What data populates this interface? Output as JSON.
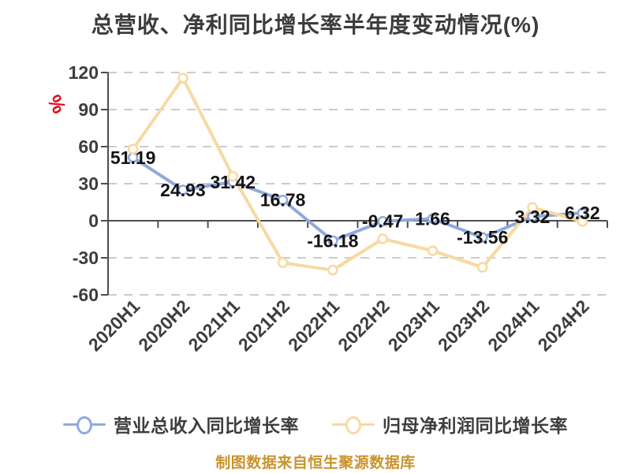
{
  "title": "总营收、净利同比增长率半年度变动情况(%)",
  "unit_label": "%",
  "footer": "制图数据来自恒生聚源数据库",
  "colors": {
    "revenue_series": "#8fandc-placeholder",
    "title_text": "#3c3c3c",
    "axis": "#4d4d4d",
    "gridline": "#cbcbcb",
    "data_label": "#141414",
    "unit_red": "#e60012",
    "footer_gold": "#c9932e"
  },
  "legend": [
    {
      "label": "营业总收入同比增长率",
      "color": "#8faadc"
    },
    {
      "label": "归母净利润同比增长率",
      "color": "#f8d9a0"
    }
  ],
  "chart_data": {
    "type": "line",
    "title": "总营收、净利同比增长率半年度变动情况(%)",
    "categories": [
      "2020H1",
      "2020H2",
      "2021H1",
      "2021H2",
      "2022H1",
      "2022H2",
      "2023H1",
      "2023H2",
      "2024H1",
      "2024H2"
    ],
    "series": [
      {
        "name": "营业总收入同比增长率",
        "color": "#8faadc",
        "values": [
          51.19,
          24.93,
          31.42,
          16.78,
          -16.18,
          -0.47,
          1.66,
          -13.56,
          3.32,
          6.32
        ],
        "labels": [
          "51.19",
          "24.93",
          "31.42",
          "16.78",
          "-16.18",
          "-0.47",
          "1.66",
          "-13.56",
          "3.32",
          "6.32"
        ],
        "labels_shown": true
      },
      {
        "name": "归母净利润同比增长率",
        "color": "#f8d9a0",
        "values": [
          58,
          115.5,
          36,
          -34,
          -40,
          -14.7,
          -24.3,
          -37.7,
          10.8,
          -0.6
        ],
        "labels": [],
        "labels_shown": false
      }
    ],
    "ylim": [
      -60,
      120
    ],
    "yticks": [
      120,
      90,
      60,
      30,
      0,
      -30,
      -60
    ],
    "xlabel": "",
    "ylabel": "%",
    "grid": "dashed-horizontal",
    "legend_position": "bottom"
  }
}
